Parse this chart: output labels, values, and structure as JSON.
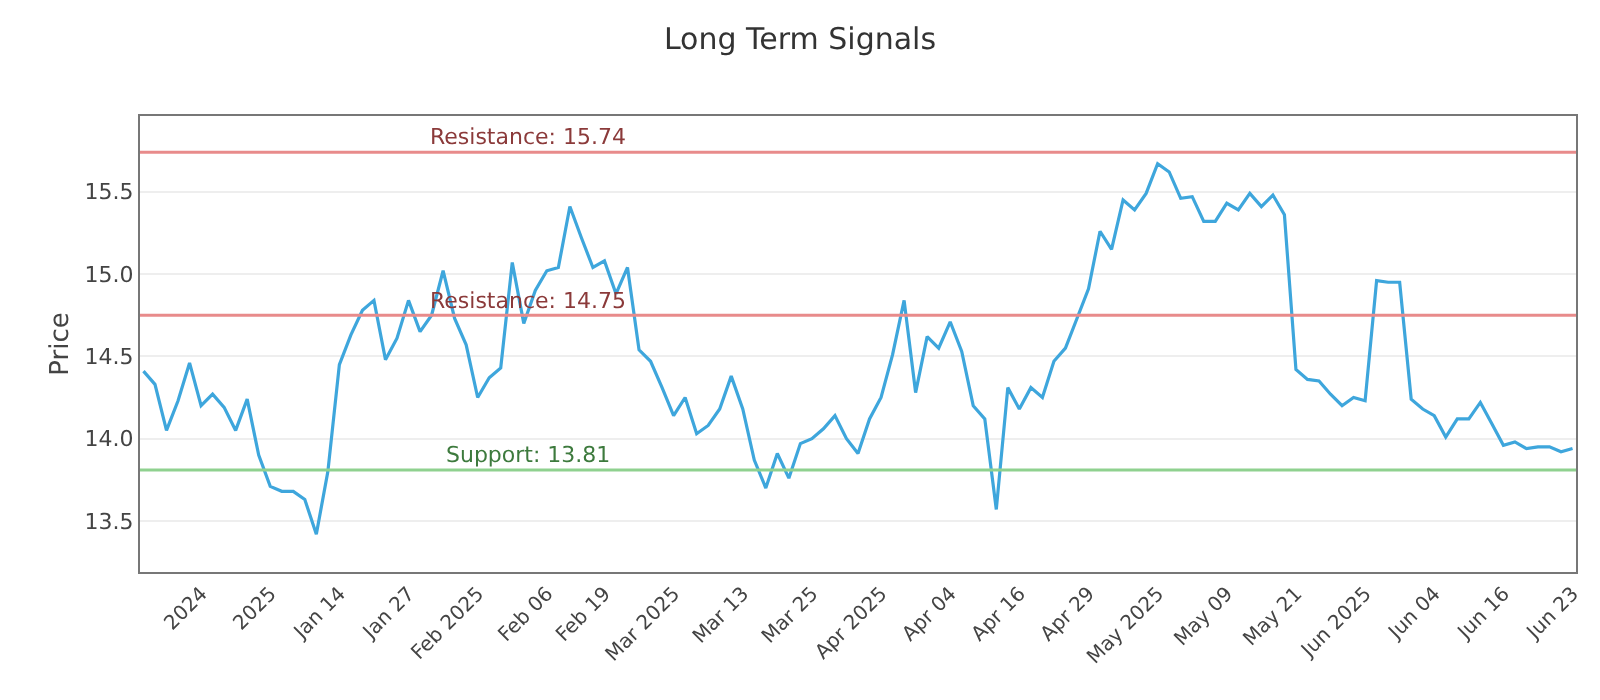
{
  "chart_data": {
    "type": "line",
    "title": "Long Term Signals",
    "ylabel": "Price",
    "categories": [
      null,
      null,
      null,
      null,
      null,
      "2024",
      null,
      null,
      null,
      null,
      null,
      "2025",
      null,
      null,
      null,
      null,
      null,
      "Jan 14",
      null,
      null,
      null,
      null,
      null,
      "Jan 27",
      null,
      null,
      null,
      null,
      null,
      "Feb 2025",
      null,
      null,
      null,
      null,
      null,
      "Feb 06",
      null,
      null,
      null,
      null,
      "Feb 19",
      null,
      null,
      null,
      null,
      null,
      "Mar 2025",
      null,
      null,
      null,
      null,
      null,
      "Mar 13",
      null,
      null,
      null,
      null,
      null,
      "Mar 25",
      null,
      null,
      null,
      null,
      null,
      "Apr 2025",
      null,
      null,
      null,
      null,
      null,
      "Apr 04",
      null,
      null,
      null,
      null,
      null,
      "Apr 16",
      null,
      null,
      null,
      null,
      null,
      "Apr 29",
      null,
      null,
      null,
      null,
      null,
      "May 2025",
      null,
      null,
      null,
      null,
      null,
      "May 09",
      null,
      null,
      null,
      null,
      null,
      "May 21",
      null,
      null,
      null,
      null,
      null,
      "Jun 2025",
      null,
      null,
      null,
      null,
      null,
      "Jun 04",
      null,
      null,
      null,
      null,
      null,
      "Jun 16",
      null,
      null,
      null,
      null,
      null,
      "Jun 23"
    ],
    "series": [
      {
        "color": "#3ea6dc",
        "values": [
          14.41,
          14.33,
          14.05,
          14.23,
          14.46,
          14.2,
          14.27,
          14.19,
          14.05,
          14.24,
          13.9,
          13.71,
          13.68,
          13.68,
          13.63,
          13.42,
          13.8,
          14.45,
          14.63,
          14.78,
          14.84,
          14.48,
          14.61,
          14.84,
          14.65,
          14.75,
          15.02,
          14.73,
          14.57,
          14.25,
          14.37,
          14.43,
          15.07,
          14.7,
          14.9,
          15.02,
          15.04,
          15.41,
          15.22,
          15.04,
          15.08,
          14.88,
          15.04,
          14.54,
          14.47,
          14.31,
          14.14,
          14.25,
          14.03,
          14.08,
          14.18,
          14.38,
          14.18,
          13.87,
          13.7,
          13.91,
          13.76,
          13.97,
          14.0,
          14.06,
          14.14,
          14.0,
          13.91,
          14.12,
          14.25,
          14.51,
          14.84,
          14.28,
          14.62,
          14.55,
          14.71,
          14.53,
          14.2,
          14.12,
          13.57,
          14.31,
          14.18,
          14.31,
          14.25,
          14.47,
          14.55,
          14.73,
          14.91,
          15.26,
          15.15,
          15.45,
          15.39,
          15.49,
          15.67,
          15.62,
          15.46,
          15.47,
          15.32,
          15.32,
          15.43,
          15.39,
          15.49,
          15.41,
          15.48,
          15.36,
          14.42,
          14.36,
          14.35,
          14.27,
          14.2,
          14.25,
          14.23,
          14.96,
          14.95,
          14.95,
          14.24,
          14.18,
          14.14,
          14.01,
          14.12,
          14.12,
          14.22,
          14.09,
          13.96,
          13.98,
          13.94,
          13.95,
          13.95,
          13.92,
          13.94
        ]
      }
    ],
    "ylim": [
      13.19,
      15.96
    ],
    "yticks": [
      13.5,
      {
        "value": 14,
        "label": "14.0"
      },
      14.5,
      {
        "value": 15,
        "label": "15.0"
      },
      15.5
    ],
    "grid": "y",
    "marker": "none",
    "line_style": "solid",
    "ref_lines": [
      {
        "axis": "y",
        "value": 15.74,
        "label": "Resistance: 15.74",
        "color": "#e88b8b"
      },
      {
        "axis": "y",
        "value": 14.75,
        "label": "Resistance: 14.75",
        "color": "#e88b8b"
      },
      {
        "axis": "y",
        "value": 13.81,
        "label": "Support: 13.81",
        "color": "#8fd18f"
      }
    ]
  }
}
